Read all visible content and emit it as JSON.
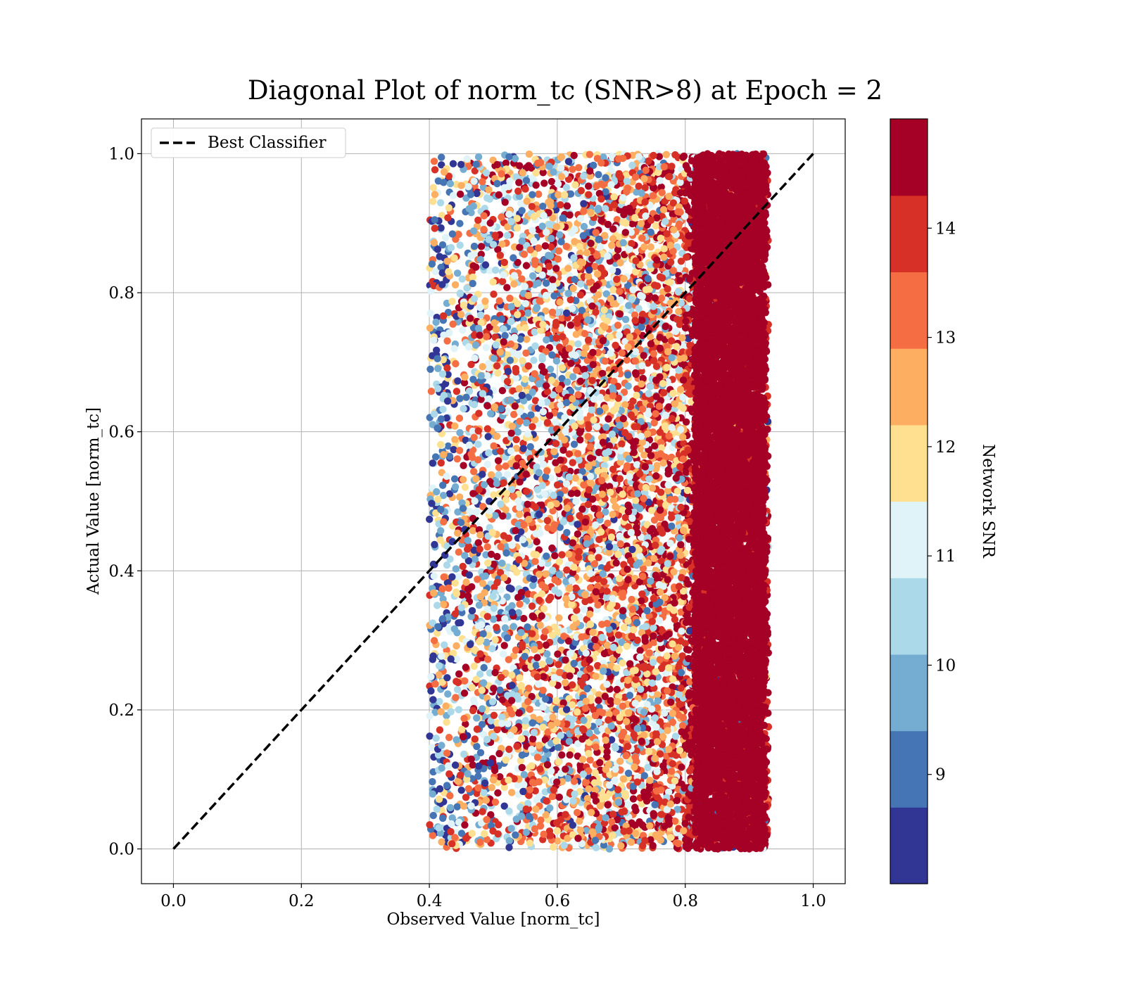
{
  "chart_data": {
    "type": "scatter",
    "title": "Diagonal Plot of norm_tc (SNR>8) at Epoch = 2",
    "xlabel": "Observed Value [norm_tc]",
    "ylabel": "Actual Value [norm_tc]",
    "xlim": [
      -0.05,
      1.05
    ],
    "ylim": [
      -0.05,
      1.05
    ],
    "xticks": [
      "0.0",
      "0.2",
      "0.4",
      "0.6",
      "0.8",
      "1.0"
    ],
    "yticks": [
      "0.0",
      "0.2",
      "0.4",
      "0.6",
      "0.8",
      "1.0"
    ],
    "grid": true,
    "legend": {
      "position": "upper left",
      "entries": [
        {
          "label": "Best Classifier",
          "style": "dashed",
          "color": "#000000"
        }
      ]
    },
    "reference_line": {
      "label": "Best Classifier",
      "x": [
        0.0,
        1.0
      ],
      "y": [
        0.0,
        1.0
      ]
    },
    "colorbar": {
      "label": "Network SNR",
      "ticks": [
        "9",
        "10",
        "11",
        "12",
        "13",
        "14"
      ],
      "range": [
        8.0,
        15.0
      ],
      "colors": [
        "#313695",
        "#4575b4",
        "#74add1",
        "#abd9e9",
        "#e0f3f8",
        "#fee090",
        "#fdae61",
        "#f46d43",
        "#d73027",
        "#a50026"
      ]
    },
    "scatter_summary": {
      "observed_range": [
        0.4,
        0.93
      ],
      "actual_range": [
        0.0,
        1.0
      ],
      "trend": "points at observed 0.4–0.75 mixed SNR 8–15; points at observed 0.8–0.93 mostly SNR ≥ 14"
    }
  }
}
